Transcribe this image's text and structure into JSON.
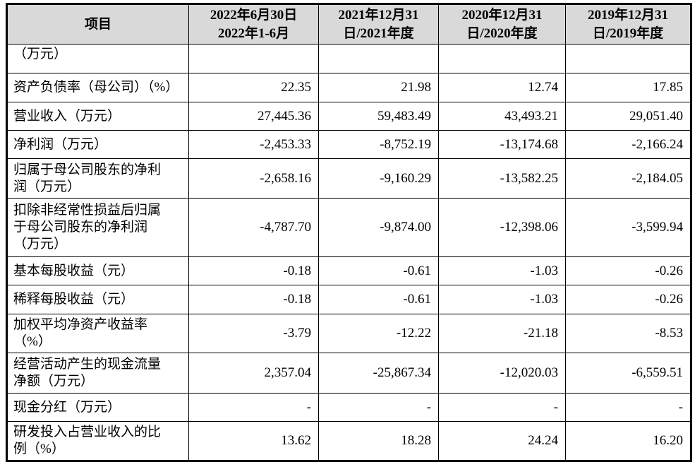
{
  "table": {
    "headers": [
      [
        "项目"
      ],
      [
        "2022年6月30日",
        "2022年1-6月"
      ],
      [
        "2021年12月31",
        "日/2021年度"
      ],
      [
        "2020年12月31",
        "日/2020年度"
      ],
      [
        "2019年12月31",
        "日/2019年度"
      ]
    ],
    "rows": [
      {
        "label": [
          "（万元）"
        ],
        "values": [
          "",
          "",
          "",
          ""
        ]
      },
      {
        "label": [
          "资产负债率（母公司）（%）"
        ],
        "values": [
          "22.35",
          "21.98",
          "12.74",
          "17.85"
        ]
      },
      {
        "label": [
          "营业收入（万元）"
        ],
        "values": [
          "27,445.36",
          "59,483.49",
          "43,493.21",
          "29,051.40"
        ]
      },
      {
        "label": [
          "净利润（万元）"
        ],
        "values": [
          "-2,453.33",
          "-8,752.19",
          "-13,174.68",
          "-2,166.24"
        ]
      },
      {
        "label": [
          "归属于母公司股东的净利",
          "润（万元）"
        ],
        "values": [
          "-2,658.16",
          "-9,160.29",
          "-13,582.25",
          "-2,184.05"
        ]
      },
      {
        "label": [
          "扣除非经常性损益后归属",
          "于母公司股东的净利润",
          "（万元）"
        ],
        "values": [
          "-4,787.70",
          "-9,874.00",
          "-12,398.06",
          "-3,599.94"
        ]
      },
      {
        "label": [
          "基本每股收益（元）"
        ],
        "values": [
          "-0.18",
          "-0.61",
          "-1.03",
          "-0.26"
        ]
      },
      {
        "label": [
          "稀释每股收益（元）"
        ],
        "values": [
          "-0.18",
          "-0.61",
          "-1.03",
          "-0.26"
        ]
      },
      {
        "label": [
          "加权平均净资产收益率",
          "（%）"
        ],
        "values": [
          "-3.79",
          "-12.22",
          "-21.18",
          "-8.53"
        ]
      },
      {
        "label": [
          "经营活动产生的现金流量",
          "净额（万元）"
        ],
        "values": [
          "2,357.04",
          "-25,867.34",
          "-12,020.03",
          "-6,559.51"
        ]
      },
      {
        "label": [
          "现金分红（万元）"
        ],
        "values": [
          "-",
          "-",
          "-",
          "-"
        ]
      },
      {
        "label": [
          "研发投入占营业收入的比",
          "例（%）"
        ],
        "values": [
          "13.62",
          "18.28",
          "24.24",
          "16.20"
        ]
      }
    ]
  }
}
